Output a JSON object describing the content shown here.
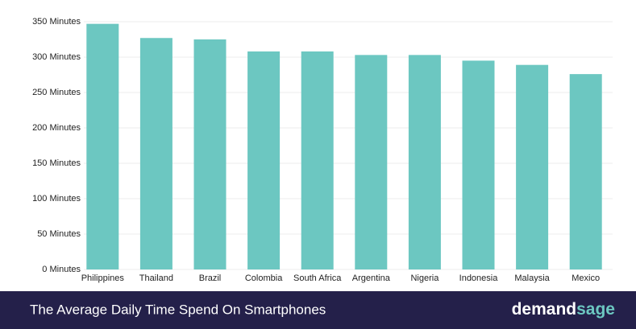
{
  "chart_data": {
    "type": "bar",
    "categories": [
      "Philippines",
      "Thailand",
      "Brazil",
      "Colombia",
      "South Africa",
      "Argentina",
      "Nigeria",
      "Indonesia",
      "Malaysia",
      "Mexico"
    ],
    "values": [
      347,
      327,
      325,
      308,
      308,
      303,
      303,
      295,
      289,
      276
    ],
    "color": "#6cc7c1",
    "ylim": [
      0,
      350
    ],
    "yticks": [
      {
        "value": 0,
        "label": "0 Minutes"
      },
      {
        "value": 50,
        "label": "50 Minutes"
      },
      {
        "value": 100,
        "label": "100 Minutes"
      },
      {
        "value": 150,
        "label": "150 Minutes"
      },
      {
        "value": 200,
        "label": "200 Minutes"
      },
      {
        "value": 250,
        "label": "250 Minutes"
      },
      {
        "value": 300,
        "label": "300 Minutes"
      },
      {
        "value": 350,
        "label": "350 Minutes"
      }
    ],
    "grid": true
  },
  "footer": {
    "title": "The Average Daily Time Spend On Smartphones",
    "brand": [
      "demand",
      "sage"
    ]
  }
}
